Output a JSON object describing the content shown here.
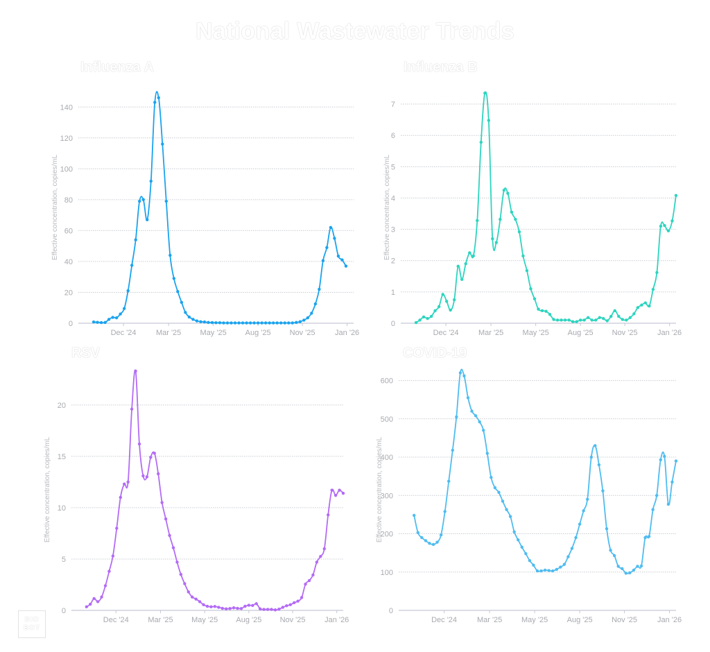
{
  "title": "National Wastewater Trends",
  "logo": {
    "line1": "BIO",
    "line2": "BOT"
  },
  "chart_data": [
    {
      "type": "line",
      "title": "Influenza A",
      "ylabel": "Effective concentration, copies/mL",
      "xlabel": "",
      "color": "#1aa3ee",
      "x_unit": "week index (weekly samples)",
      "xlim": [
        -4,
        68
      ],
      "ylim": [
        0,
        150
      ],
      "yticks": [
        0,
        20,
        40,
        60,
        80,
        100,
        120,
        140
      ],
      "xticks": [
        {
          "label": "Dec '24",
          "x": 7.8
        },
        {
          "label": "Mar '25",
          "x": 19.6
        },
        {
          "label": "May '25",
          "x": 31.3
        },
        {
          "label": "Aug '25",
          "x": 43.0
        },
        {
          "label": "Nov '25",
          "x": 54.6
        },
        {
          "label": "Jan '26",
          "x": 66.3
        }
      ],
      "grid": true,
      "values": [
        0.8,
        0.6,
        0.4,
        0.5,
        2.5,
        3.8,
        3.5,
        6,
        9.5,
        21,
        37.5,
        54,
        79,
        80,
        67,
        92,
        143,
        146,
        116,
        79,
        44,
        29,
        20.5,
        13.5,
        7,
        4,
        2.5,
        1.5,
        1,
        0.8,
        0.5,
        0.4,
        0.3,
        0.3,
        0.2,
        0.2,
        0.2,
        0.2,
        0.2,
        0.2,
        0.2,
        0.2,
        0.2,
        0.2,
        0.2,
        0.2,
        0.2,
        0.2,
        0.2,
        0.2,
        0.2,
        0.2,
        0.2,
        0.5,
        1,
        2,
        3.5,
        6.5,
        12.5,
        22,
        40.5,
        49,
        62,
        55,
        43.5,
        41,
        37
      ]
    },
    {
      "type": "line",
      "title": "Influenza B",
      "ylabel": "Effective concentration, copies/mL",
      "xlabel": "",
      "color": "#2dd4bf",
      "x_unit": "week index (weekly samples)",
      "xlim": [
        -4,
        68
      ],
      "ylim": [
        0,
        7.4
      ],
      "yticks": [
        0,
        1,
        2,
        3,
        4,
        5,
        6,
        7
      ],
      "xticks": [
        {
          "label": "Dec '24",
          "x": 7.8
        },
        {
          "label": "Mar '25",
          "x": 19.6
        },
        {
          "label": "May '25",
          "x": 31.3
        },
        {
          "label": "Aug '25",
          "x": 43.0
        },
        {
          "label": "Nov '25",
          "x": 54.6
        },
        {
          "label": "Jan '26",
          "x": 66.3
        }
      ],
      "grid": true,
      "values": [
        0.02,
        0.1,
        0.2,
        0.15,
        0.22,
        0.4,
        0.53,
        0.92,
        0.7,
        0.42,
        0.75,
        1.82,
        1.4,
        1.9,
        2.25,
        2.15,
        3.28,
        5.78,
        7.35,
        6.48,
        2.7,
        2.58,
        3.32,
        4.25,
        4.15,
        3.55,
        3.32,
        2.92,
        2.15,
        1.68,
        1.1,
        0.78,
        0.45,
        0.4,
        0.38,
        0.28,
        0.12,
        0.1,
        0.1,
        0.1,
        0.1,
        0.05,
        0.05,
        0.1,
        0.1,
        0.18,
        0.1,
        0.1,
        0.18,
        0.15,
        0.08,
        0.22,
        0.4,
        0.22,
        0.12,
        0.1,
        0.18,
        0.3,
        0.5,
        0.58,
        0.65,
        0.55,
        1.08,
        1.62,
        3.1,
        3.12,
        2.95,
        3.27,
        4.08
      ]
    },
    {
      "type": "line",
      "title": "RSV",
      "ylabel": "Effective concentration, copies/mL",
      "xlabel": "",
      "color": "#b36bf5",
      "x_unit": "week index (weekly samples)",
      "xlim": [
        -4,
        68
      ],
      "ylim": [
        0,
        23.5
      ],
      "yticks": [
        0,
        5,
        10,
        15,
        20
      ],
      "xticks": [
        {
          "label": "Dec '24",
          "x": 7.8
        },
        {
          "label": "Mar '25",
          "x": 19.6
        },
        {
          "label": "May '25",
          "x": 31.3
        },
        {
          "label": "Aug '25",
          "x": 43.0
        },
        {
          "label": "Nov '25",
          "x": 54.6
        },
        {
          "label": "Jan '26",
          "x": 66.3
        }
      ],
      "grid": true,
      "values": [
        0.35,
        0.6,
        1.15,
        0.85,
        1.3,
        2.4,
        3.8,
        5.3,
        8,
        11,
        12.3,
        12.5,
        19.6,
        23.3,
        16.2,
        13.1,
        13,
        14.9,
        15.3,
        13.3,
        10.5,
        8.9,
        7.3,
        6.1,
        4.7,
        3.5,
        2.6,
        1.8,
        1.3,
        1.1,
        0.85,
        0.55,
        0.4,
        0.35,
        0.38,
        0.3,
        0.2,
        0.15,
        0.18,
        0.25,
        0.2,
        0.18,
        0.4,
        0.5,
        0.48,
        0.65,
        0.15,
        0.1,
        0.1,
        0.1,
        0.05,
        0.12,
        0.3,
        0.45,
        0.55,
        0.75,
        0.9,
        1.25,
        2.55,
        2.9,
        3.45,
        4.7,
        5.25,
        6,
        9.3,
        11.7,
        11.2,
        11.7,
        11.4
      ]
    },
    {
      "type": "line",
      "title": "COVID-19",
      "ylabel": "Effective concentration, copies/mL",
      "xlabel": "",
      "color": "#4fbcf0",
      "x_unit": "week index (weekly samples)",
      "xlim": [
        -4,
        68
      ],
      "ylim": [
        0,
        630
      ],
      "yticks": [
        0,
        100,
        200,
        300,
        400,
        500,
        600
      ],
      "xticks": [
        {
          "label": "Dec '24",
          "x": 7.8
        },
        {
          "label": "Mar '25",
          "x": 19.6
        },
        {
          "label": "May '25",
          "x": 31.3
        },
        {
          "label": "Aug '25",
          "x": 43.0
        },
        {
          "label": "Nov '25",
          "x": 54.6
        },
        {
          "label": "Jan '26",
          "x": 66.3
        }
      ],
      "grid": true,
      "values": [
        248,
        203,
        190,
        182,
        175,
        172,
        178,
        197,
        258,
        337,
        418,
        505,
        620,
        612,
        555,
        520,
        508,
        492,
        470,
        410,
        347,
        320,
        308,
        285,
        263,
        245,
        205,
        184,
        165,
        148,
        130,
        118,
        103,
        103,
        105,
        104,
        103,
        107,
        113,
        120,
        140,
        162,
        190,
        225,
        260,
        290,
        400,
        430,
        380,
        312,
        213,
        157,
        143,
        115,
        109,
        97,
        98,
        105,
        115,
        116,
        190,
        193,
        263,
        300,
        393,
        402,
        277,
        335,
        390
      ]
    }
  ]
}
